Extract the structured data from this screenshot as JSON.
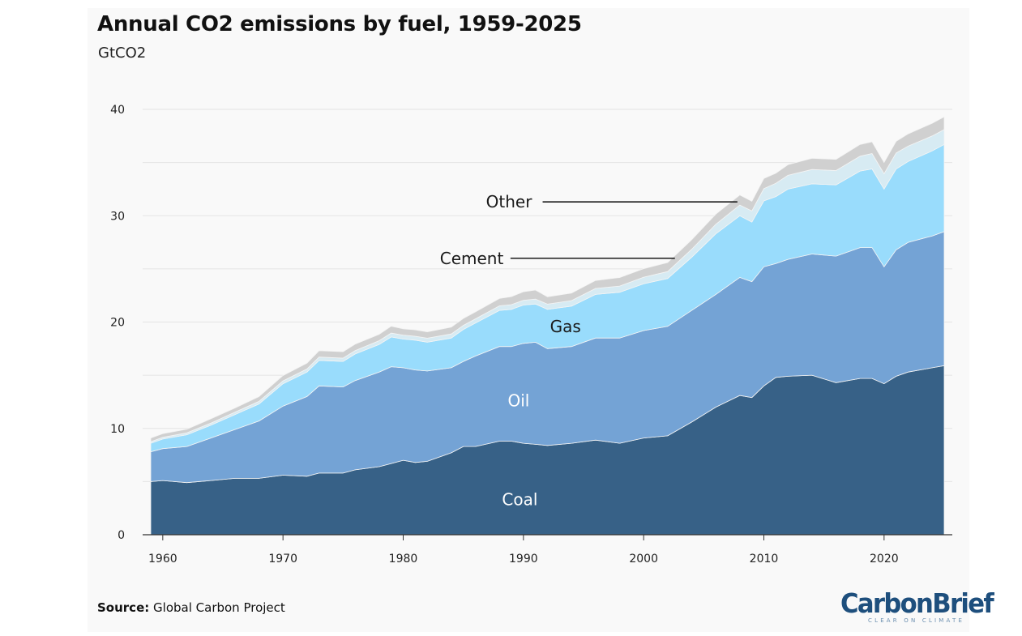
{
  "title": "Annual CO2 emissions by fuel, 1959-2025",
  "subtitle": "GtCO2",
  "source_label": "Source:",
  "source_text": "Global Carbon Project",
  "logo": {
    "word": "CarbonBrief",
    "tagline": "CLEAR ON CLIMATE"
  },
  "chart_data": {
    "type": "area",
    "stacked": true,
    "x": [
      1959,
      1960,
      1962,
      1964,
      1966,
      1968,
      1970,
      1972,
      1973,
      1975,
      1976,
      1978,
      1979,
      1980,
      1981,
      1982,
      1984,
      1985,
      1986,
      1988,
      1989,
      1990,
      1991,
      1992,
      1994,
      1996,
      1998,
      2000,
      2002,
      2004,
      2006,
      2008,
      2009,
      2010,
      2011,
      2012,
      2014,
      2016,
      2018,
      2019,
      2020,
      2021,
      2022,
      2024,
      2025
    ],
    "ylim": [
      0,
      40
    ],
    "yticks": [
      0,
      10,
      20,
      30,
      40
    ],
    "xticks": [
      1960,
      1970,
      1980,
      1990,
      2000,
      2010,
      2020
    ],
    "grid": true,
    "series": [
      {
        "name": "Coal",
        "color": "#376187",
        "values": [
          5.0,
          5.1,
          4.9,
          5.1,
          5.3,
          5.3,
          5.6,
          5.5,
          5.8,
          5.8,
          6.1,
          6.4,
          6.7,
          7.0,
          6.8,
          6.9,
          7.7,
          8.3,
          8.3,
          8.8,
          8.8,
          8.6,
          8.5,
          8.4,
          8.6,
          8.9,
          8.6,
          9.1,
          9.3,
          10.6,
          12.0,
          13.1,
          12.9,
          14.0,
          14.8,
          14.9,
          15.0,
          14.3,
          14.7,
          14.7,
          14.2,
          14.9,
          15.3,
          15.7,
          15.9
        ]
      },
      {
        "name": "Oil",
        "color": "#74a3d5",
        "values": [
          2.8,
          3.0,
          3.4,
          4.0,
          4.6,
          5.4,
          6.5,
          7.5,
          8.2,
          8.1,
          8.4,
          8.9,
          9.1,
          8.7,
          8.7,
          8.5,
          8.0,
          8.0,
          8.5,
          8.9,
          8.9,
          9.4,
          9.6,
          9.1,
          9.1,
          9.6,
          9.9,
          10.1,
          10.3,
          10.5,
          10.6,
          11.1,
          10.9,
          11.2,
          10.7,
          11.0,
          11.4,
          11.9,
          12.3,
          12.3,
          11.0,
          11.9,
          12.2,
          12.4,
          12.6
        ]
      },
      {
        "name": "Gas",
        "color": "#99dcfc",
        "values": [
          0.8,
          0.9,
          1.1,
          1.2,
          1.4,
          1.6,
          2.1,
          2.3,
          2.4,
          2.4,
          2.5,
          2.6,
          2.8,
          2.7,
          2.8,
          2.7,
          2.8,
          3.0,
          3.1,
          3.4,
          3.5,
          3.6,
          3.6,
          3.7,
          3.8,
          4.1,
          4.3,
          4.4,
          4.5,
          5.0,
          5.7,
          5.8,
          5.6,
          6.2,
          6.3,
          6.6,
          6.6,
          6.7,
          7.2,
          7.4,
          7.3,
          7.6,
          7.6,
          8.0,
          8.2
        ]
      },
      {
        "name": "Cement",
        "color": "#d7ebf3",
        "values": [
          0.15,
          0.16,
          0.18,
          0.2,
          0.22,
          0.24,
          0.27,
          0.29,
          0.31,
          0.31,
          0.32,
          0.35,
          0.36,
          0.37,
          0.37,
          0.38,
          0.38,
          0.39,
          0.4,
          0.42,
          0.44,
          0.45,
          0.46,
          0.48,
          0.52,
          0.56,
          0.58,
          0.62,
          0.65,
          0.75,
          0.9,
          1.0,
          1.05,
          1.15,
          1.25,
          1.3,
          1.35,
          1.35,
          1.4,
          1.45,
          1.45,
          1.5,
          1.45,
          1.4,
          1.4
        ]
      },
      {
        "name": "Other",
        "color": "#d0d0d0",
        "values": [
          0.35,
          0.35,
          0.35,
          0.4,
          0.4,
          0.45,
          0.5,
          0.55,
          0.6,
          0.6,
          0.6,
          0.6,
          0.65,
          0.6,
          0.6,
          0.6,
          0.65,
          0.65,
          0.65,
          0.7,
          0.75,
          0.8,
          0.85,
          0.7,
          0.7,
          0.75,
          0.8,
          0.8,
          0.85,
          0.9,
          0.95,
          0.95,
          0.9,
          0.95,
          0.95,
          1.0,
          1.05,
          1.05,
          1.1,
          1.1,
          1.05,
          1.1,
          1.15,
          1.2,
          1.2
        ]
      }
    ],
    "labels": [
      {
        "text": "Coal",
        "x": 1989.7,
        "y": 3.3,
        "color": "#ffffff",
        "leader": false
      },
      {
        "text": "Oil",
        "x": 1989.6,
        "y": 12.6,
        "color": "#ffffff",
        "leader": false
      },
      {
        "text": "Gas",
        "x": 1993.5,
        "y": 19.6,
        "color": "#1a1a1a",
        "leader": false
      },
      {
        "text": "Cement",
        "x": 1985.7,
        "y": 26.0,
        "color": "#1a1a1a",
        "leader": true,
        "to_x": 2002.6,
        "to_y": 26.0
      },
      {
        "text": "Other",
        "x": 1988.8,
        "y": 31.3,
        "color": "#1a1a1a",
        "leader": true,
        "to_x": 2007.8,
        "to_y": 31.3
      }
    ]
  }
}
